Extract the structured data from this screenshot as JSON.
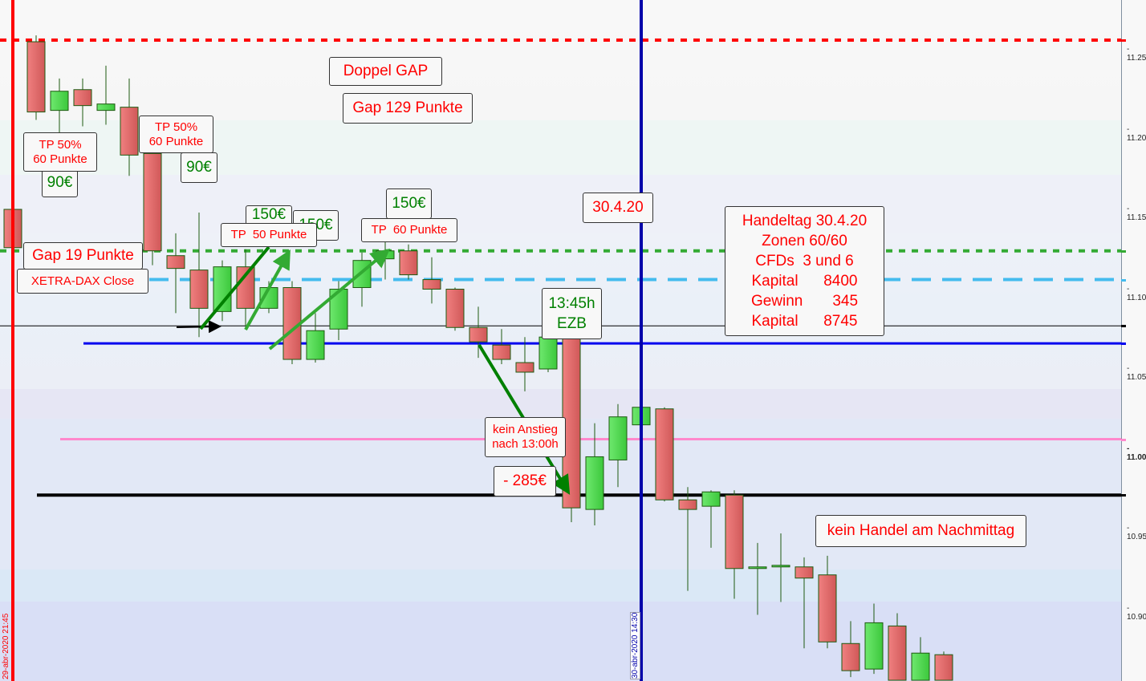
{
  "chart_data": {
    "type": "candlestick",
    "ylim": [
      10.855,
      11.28
    ],
    "y_ticks": [
      "11.25",
      "11.20",
      "11.15",
      "11.10",
      "11.05",
      "11.00",
      "10.95",
      "10.90"
    ],
    "colors": {
      "up": "#4cd44c",
      "down": "#e06262",
      "wick": "#1d5a10"
    },
    "candles": [
      {
        "o": 11.15,
        "h": 11.152,
        "l": 11.124,
        "c": 11.126
      },
      {
        "o": 11.255,
        "h": 11.259,
        "l": 11.206,
        "c": 11.211
      },
      {
        "o": 11.212,
        "h": 11.232,
        "l": 11.198,
        "c": 11.224
      },
      {
        "o": 11.225,
        "h": 11.232,
        "l": 11.202,
        "c": 11.215
      },
      {
        "o": 11.212,
        "h": 11.24,
        "l": 11.203,
        "c": 11.216
      },
      {
        "o": 11.214,
        "h": 11.232,
        "l": 11.171,
        "c": 11.184
      },
      {
        "o": 11.185,
        "h": 11.188,
        "l": 11.115,
        "c": 11.124
      },
      {
        "o": 11.121,
        "h": 11.135,
        "l": 11.085,
        "c": 11.113
      },
      {
        "o": 11.112,
        "h": 11.148,
        "l": 11.07,
        "c": 11.088
      },
      {
        "o": 11.086,
        "h": 11.118,
        "l": 11.08,
        "c": 11.114
      },
      {
        "o": 11.114,
        "h": 11.125,
        "l": 11.075,
        "c": 11.088
      },
      {
        "o": 11.088,
        "h": 11.105,
        "l": 11.085,
        "c": 11.101
      },
      {
        "o": 11.101,
        "h": 11.105,
        "l": 11.053,
        "c": 11.056
      },
      {
        "o": 11.056,
        "h": 11.085,
        "l": 11.054,
        "c": 11.074
      },
      {
        "o": 11.075,
        "h": 11.105,
        "l": 11.068,
        "c": 11.1
      },
      {
        "o": 11.101,
        "h": 11.123,
        "l": 11.089,
        "c": 11.118
      },
      {
        "o": 11.119,
        "h": 11.13,
        "l": 11.106,
        "c": 11.124
      },
      {
        "o": 11.124,
        "h": 11.128,
        "l": 11.106,
        "c": 11.109
      },
      {
        "o": 11.106,
        "h": 11.12,
        "l": 11.091,
        "c": 11.1
      },
      {
        "o": 11.1,
        "h": 11.101,
        "l": 11.074,
        "c": 11.076
      },
      {
        "o": 11.076,
        "h": 11.089,
        "l": 11.057,
        "c": 11.067
      },
      {
        "o": 11.065,
        "h": 11.075,
        "l": 11.053,
        "c": 11.056
      },
      {
        "o": 11.054,
        "h": 11.07,
        "l": 11.036,
        "c": 11.048
      },
      {
        "o": 11.05,
        "h": 11.078,
        "l": 11.048,
        "c": 11.07
      },
      {
        "o": 11.07,
        "h": 11.078,
        "l": 10.954,
        "c": 10.963
      },
      {
        "o": 10.962,
        "h": 11.016,
        "l": 10.952,
        "c": 10.995
      },
      {
        "o": 10.993,
        "h": 11.028,
        "l": 10.976,
        "c": 11.02
      },
      {
        "o": 11.015,
        "h": 11.027,
        "l": 11.015,
        "c": 11.026
      },
      {
        "o": 11.025,
        "h": 11.026,
        "l": 10.967,
        "c": 10.968
      },
      {
        "o": 10.968,
        "h": 10.976,
        "l": 10.911,
        "c": 10.962
      },
      {
        "o": 10.964,
        "h": 10.974,
        "l": 10.938,
        "c": 10.973
      },
      {
        "o": 10.971,
        "h": 10.974,
        "l": 10.906,
        "c": 10.925
      },
      {
        "o": 10.925,
        "h": 10.941,
        "l": 10.896,
        "c": 10.926
      },
      {
        "o": 10.926,
        "h": 10.947,
        "l": 10.904,
        "c": 10.927
      },
      {
        "o": 10.926,
        "h": 10.932,
        "l": 10.875,
        "c": 10.919
      },
      {
        "o": 10.921,
        "h": 10.933,
        "l": 10.875,
        "c": 10.879
      },
      {
        "o": 10.878,
        "h": 10.892,
        "l": 10.857,
        "c": 10.861
      },
      {
        "o": 10.862,
        "h": 10.903,
        "l": 10.859,
        "c": 10.891
      },
      {
        "o": 10.889,
        "h": 10.897,
        "l": 10.855,
        "c": 10.855
      },
      {
        "o": 10.855,
        "h": 10.882,
        "l": 10.855,
        "c": 10.872
      },
      {
        "o": 10.871,
        "h": 10.873,
        "l": 10.855,
        "c": 10.855
      }
    ],
    "levels": [
      {
        "price": 11.256,
        "color": "#ff0000",
        "style": "dotted",
        "axis_marker": true
      },
      {
        "price": 11.124,
        "color": "#33aa33",
        "style": "dotted",
        "axis_marker": true
      },
      {
        "price": 11.106,
        "color": "#44bbee",
        "style": "dashed",
        "axis_marker": true
      },
      {
        "price": 11.077,
        "color": "#000000",
        "style": "thin",
        "axis_marker": true
      },
      {
        "price": 11.066,
        "color": "#0000ee",
        "style": "solid",
        "axis_marker": true
      },
      {
        "price": 11.006,
        "color": "#ff88cc",
        "style": "solid",
        "axis_marker": true
      },
      {
        "price": 10.971,
        "color": "#000000",
        "style": "thick",
        "axis_marker": true
      }
    ],
    "verticals": [
      {
        "label": "29-abr-2020 21:45",
        "color": "#ff0000"
      },
      {
        "label": "30-abr-2020 14:30",
        "color": "#0000aa"
      }
    ],
    "annotations": {
      "doppel_gap": "Doppel GAP",
      "gap129": "Gap 129 Punkte",
      "tp1": "TP 50%\n60 Punkte",
      "tp2": "TP 50%\n60 Punkte",
      "eur90a": "90€",
      "eur90b": "90€",
      "eur150a": "150€",
      "eur150b": "150€",
      "tp50": "TP  50 Punkte",
      "eur150c": "150€",
      "tp60": "TP  60 Punkte",
      "date": "30.4.20",
      "summary": "Handeltag 30.4.20\nZonen 60/60\nCFDs  3 und 6\nKapital      8400\nGewinn       345\nKapital      8745",
      "ezb": "13:45h\nEZB",
      "kein_anstieg": "kein Anstieg\nnach 13:00h",
      "loss": "- 285€",
      "kein_handel": "kein Handel am Nachmittag",
      "gap19": "Gap 19 Punkte",
      "xetra": "XETRA-DAX Close"
    }
  }
}
